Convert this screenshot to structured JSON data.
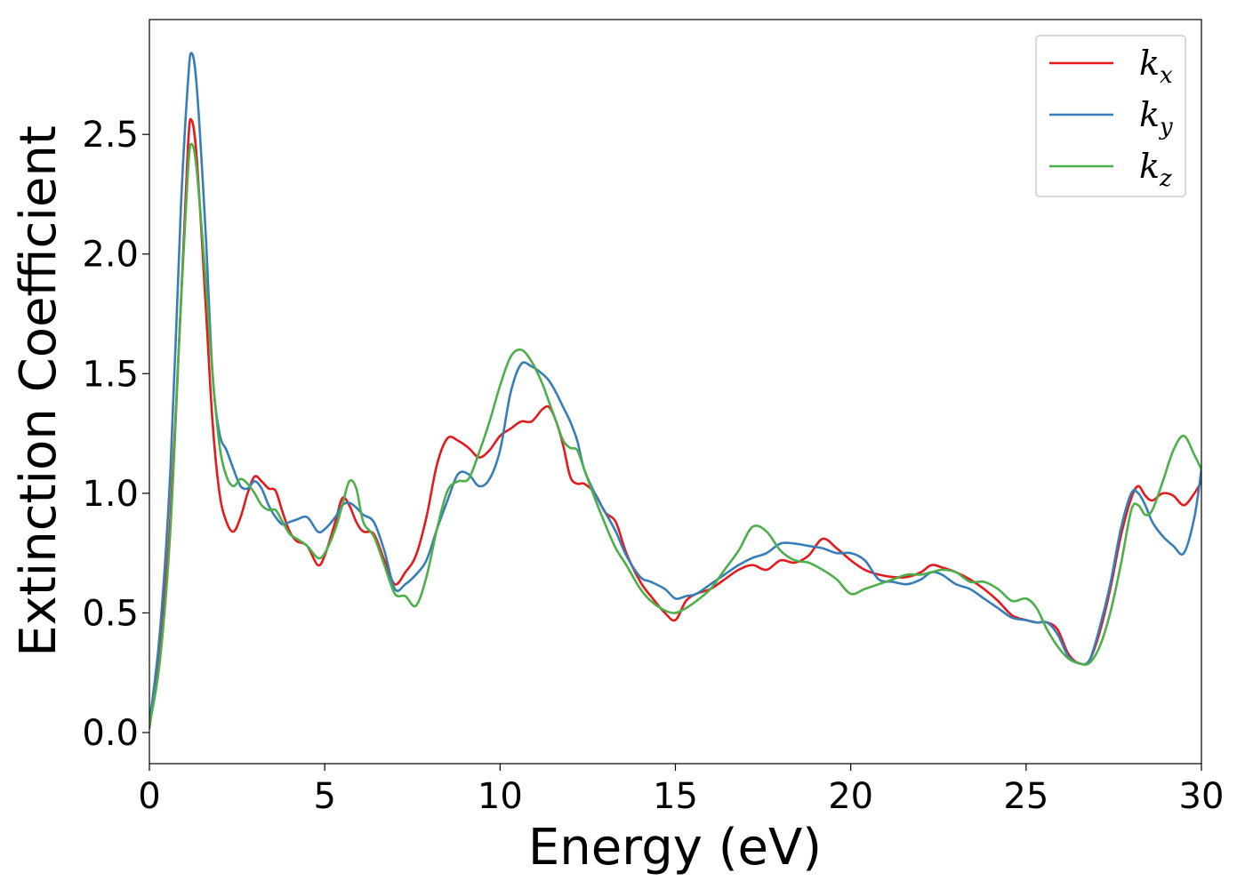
{
  "chart_data": {
    "type": "line",
    "xlabel": "Energy (eV)",
    "ylabel": "Extinction Coefficient",
    "xlim": [
      0,
      30
    ],
    "ylim": [
      -0.13,
      2.98
    ],
    "xticks": [
      0,
      5,
      10,
      15,
      20,
      25,
      30
    ],
    "yticks": [
      0.0,
      0.5,
      1.0,
      1.5,
      2.0,
      2.5
    ],
    "xtick_labels": [
      "0",
      "5",
      "10",
      "15",
      "20",
      "25",
      "30"
    ],
    "ytick_labels": [
      "0.0",
      "0.5",
      "1.0",
      "1.5",
      "2.0",
      "2.5"
    ],
    "grid": false,
    "legend": {
      "placement": "top-right"
    },
    "series": [
      {
        "name": "k_x",
        "label_base": "k",
        "label_sub": "x",
        "color": "#e41a1c",
        "x": [
          0,
          0.3,
          0.6,
          0.9,
          1.1,
          1.2,
          1.35,
          1.6,
          1.8,
          2.0,
          2.2,
          2.4,
          2.6,
          2.8,
          3.0,
          3.2,
          3.4,
          3.6,
          3.8,
          4.0,
          4.2,
          4.5,
          4.8,
          5.0,
          5.3,
          5.5,
          5.7,
          5.9,
          6.1,
          6.4,
          6.7,
          7.0,
          7.3,
          7.6,
          7.9,
          8.2,
          8.5,
          8.8,
          9.1,
          9.4,
          9.7,
          10.0,
          10.3,
          10.6,
          10.9,
          11.2,
          11.4,
          11.6,
          11.8,
          12.0,
          12.2,
          12.4,
          12.7,
          13.0,
          13.3,
          13.6,
          14.0,
          14.3,
          14.7,
          15.0,
          15.3,
          15.6,
          16.0,
          16.4,
          16.8,
          17.2,
          17.6,
          18.0,
          18.4,
          18.8,
          19.2,
          19.6,
          20.0,
          20.4,
          20.8,
          21.2,
          21.6,
          22.0,
          22.3,
          22.6,
          23.0,
          23.4,
          23.8,
          24.2,
          24.6,
          25.0,
          25.3,
          25.6,
          25.9,
          26.2,
          26.5,
          26.8,
          27.1,
          27.4,
          27.7,
          28.0,
          28.2,
          28.4,
          28.6,
          28.9,
          29.2,
          29.5,
          29.8,
          30.0
        ],
        "values": [
          0.02,
          0.35,
          0.9,
          1.8,
          2.45,
          2.56,
          2.4,
          1.8,
          1.3,
          1.0,
          0.88,
          0.84,
          0.9,
          1.0,
          1.07,
          1.05,
          1.02,
          1.01,
          0.92,
          0.84,
          0.8,
          0.78,
          0.7,
          0.74,
          0.88,
          0.98,
          0.95,
          0.88,
          0.84,
          0.83,
          0.72,
          0.62,
          0.67,
          0.74,
          0.9,
          1.12,
          1.23,
          1.22,
          1.19,
          1.15,
          1.18,
          1.24,
          1.27,
          1.3,
          1.3,
          1.35,
          1.36,
          1.3,
          1.2,
          1.07,
          1.04,
          1.04,
          1.0,
          0.92,
          0.88,
          0.75,
          0.63,
          0.57,
          0.5,
          0.47,
          0.55,
          0.58,
          0.6,
          0.64,
          0.68,
          0.7,
          0.68,
          0.72,
          0.71,
          0.74,
          0.81,
          0.77,
          0.72,
          0.68,
          0.66,
          0.65,
          0.65,
          0.67,
          0.7,
          0.69,
          0.67,
          0.64,
          0.6,
          0.55,
          0.49,
          0.47,
          0.46,
          0.46,
          0.43,
          0.33,
          0.29,
          0.3,
          0.42,
          0.6,
          0.82,
          0.98,
          1.03,
          0.99,
          0.97,
          1.0,
          0.99,
          0.95,
          1.0,
          1.05
        ]
      },
      {
        "name": "k_y",
        "label_base": "k",
        "label_sub": "y",
        "color": "#377eb8",
        "x": [
          0,
          0.3,
          0.6,
          0.9,
          1.1,
          1.2,
          1.35,
          1.6,
          1.8,
          2.0,
          2.2,
          2.4,
          2.6,
          2.8,
          3.0,
          3.2,
          3.4,
          3.6,
          3.8,
          4.0,
          4.2,
          4.5,
          4.8,
          5.0,
          5.3,
          5.5,
          5.7,
          5.9,
          6.1,
          6.4,
          6.7,
          7.0,
          7.3,
          7.6,
          7.9,
          8.2,
          8.5,
          8.8,
          9.1,
          9.4,
          9.7,
          10.0,
          10.3,
          10.6,
          10.9,
          11.2,
          11.4,
          11.6,
          11.8,
          12.0,
          12.2,
          12.4,
          12.7,
          13.0,
          13.3,
          13.6,
          14.0,
          14.3,
          14.7,
          15.0,
          15.3,
          15.6,
          16.0,
          16.4,
          16.8,
          17.2,
          17.6,
          18.0,
          18.4,
          18.8,
          19.2,
          19.6,
          20.0,
          20.4,
          20.8,
          21.2,
          21.6,
          22.0,
          22.3,
          22.6,
          23.0,
          23.4,
          23.8,
          24.2,
          24.6,
          25.0,
          25.3,
          25.6,
          25.9,
          26.2,
          26.5,
          26.8,
          27.1,
          27.4,
          27.7,
          28.0,
          28.2,
          28.4,
          28.6,
          28.9,
          29.2,
          29.5,
          29.8,
          30.0
        ],
        "values": [
          0.04,
          0.42,
          1.1,
          2.2,
          2.72,
          2.84,
          2.7,
          2.1,
          1.5,
          1.25,
          1.18,
          1.1,
          1.03,
          1.02,
          1.05,
          1.02,
          0.95,
          0.9,
          0.87,
          0.88,
          0.89,
          0.9,
          0.84,
          0.85,
          0.9,
          0.95,
          0.96,
          0.94,
          0.91,
          0.88,
          0.76,
          0.6,
          0.62,
          0.66,
          0.72,
          0.85,
          0.97,
          1.08,
          1.08,
          1.03,
          1.06,
          1.18,
          1.42,
          1.54,
          1.53,
          1.5,
          1.47,
          1.42,
          1.36,
          1.3,
          1.22,
          1.1,
          1.0,
          0.92,
          0.84,
          0.74,
          0.65,
          0.63,
          0.6,
          0.56,
          0.57,
          0.58,
          0.62,
          0.66,
          0.7,
          0.73,
          0.75,
          0.79,
          0.79,
          0.78,
          0.77,
          0.75,
          0.75,
          0.72,
          0.64,
          0.63,
          0.62,
          0.64,
          0.67,
          0.66,
          0.62,
          0.6,
          0.56,
          0.52,
          0.48,
          0.47,
          0.46,
          0.46,
          0.41,
          0.32,
          0.29,
          0.3,
          0.44,
          0.62,
          0.85,
          1.0,
          1.0,
          0.95,
          0.88,
          0.82,
          0.78,
          0.75,
          0.9,
          1.1
        ]
      },
      {
        "name": "k_z",
        "label_base": "k",
        "label_sub": "z",
        "color": "#4daf4a",
        "x": [
          0,
          0.3,
          0.6,
          0.9,
          1.1,
          1.2,
          1.35,
          1.6,
          1.8,
          2.0,
          2.2,
          2.4,
          2.6,
          2.8,
          3.0,
          3.2,
          3.4,
          3.6,
          3.8,
          4.0,
          4.2,
          4.5,
          4.8,
          5.0,
          5.3,
          5.5,
          5.7,
          5.9,
          6.1,
          6.4,
          6.7,
          7.0,
          7.3,
          7.6,
          7.9,
          8.2,
          8.5,
          8.8,
          9.1,
          9.4,
          9.7,
          10.0,
          10.3,
          10.6,
          10.9,
          11.2,
          11.4,
          11.6,
          11.8,
          12.0,
          12.2,
          12.4,
          12.7,
          13.0,
          13.3,
          13.6,
          14.0,
          14.3,
          14.7,
          15.0,
          15.3,
          15.6,
          16.0,
          16.4,
          16.8,
          17.2,
          17.6,
          18.0,
          18.4,
          18.8,
          19.2,
          19.6,
          20.0,
          20.4,
          20.8,
          21.2,
          21.6,
          22.0,
          22.3,
          22.6,
          23.0,
          23.4,
          23.8,
          24.2,
          24.6,
          25.0,
          25.3,
          25.6,
          25.9,
          26.2,
          26.5,
          26.8,
          27.1,
          27.4,
          27.7,
          28.0,
          28.2,
          28.4,
          28.6,
          28.9,
          29.2,
          29.5,
          29.8,
          30.0
        ],
        "values": [
          0.03,
          0.3,
          0.85,
          1.8,
          2.35,
          2.46,
          2.35,
          1.9,
          1.5,
          1.2,
          1.07,
          1.03,
          1.06,
          1.04,
          1.0,
          0.95,
          0.93,
          0.93,
          0.88,
          0.83,
          0.81,
          0.78,
          0.73,
          0.75,
          0.85,
          0.95,
          1.05,
          1.02,
          0.88,
          0.82,
          0.7,
          0.58,
          0.57,
          0.53,
          0.65,
          0.85,
          1.01,
          1.05,
          1.06,
          1.17,
          1.3,
          1.45,
          1.57,
          1.6,
          1.55,
          1.46,
          1.38,
          1.3,
          1.22,
          1.19,
          1.18,
          1.1,
          0.98,
          0.87,
          0.77,
          0.7,
          0.6,
          0.55,
          0.51,
          0.5,
          0.52,
          0.55,
          0.6,
          0.68,
          0.76,
          0.86,
          0.84,
          0.76,
          0.72,
          0.71,
          0.68,
          0.64,
          0.58,
          0.6,
          0.62,
          0.64,
          0.66,
          0.66,
          0.67,
          0.68,
          0.67,
          0.63,
          0.63,
          0.6,
          0.55,
          0.56,
          0.52,
          0.43,
          0.36,
          0.31,
          0.29,
          0.29,
          0.36,
          0.5,
          0.7,
          0.93,
          0.95,
          0.91,
          0.93,
          1.05,
          1.18,
          1.24,
          1.16,
          1.1
        ]
      }
    ]
  }
}
